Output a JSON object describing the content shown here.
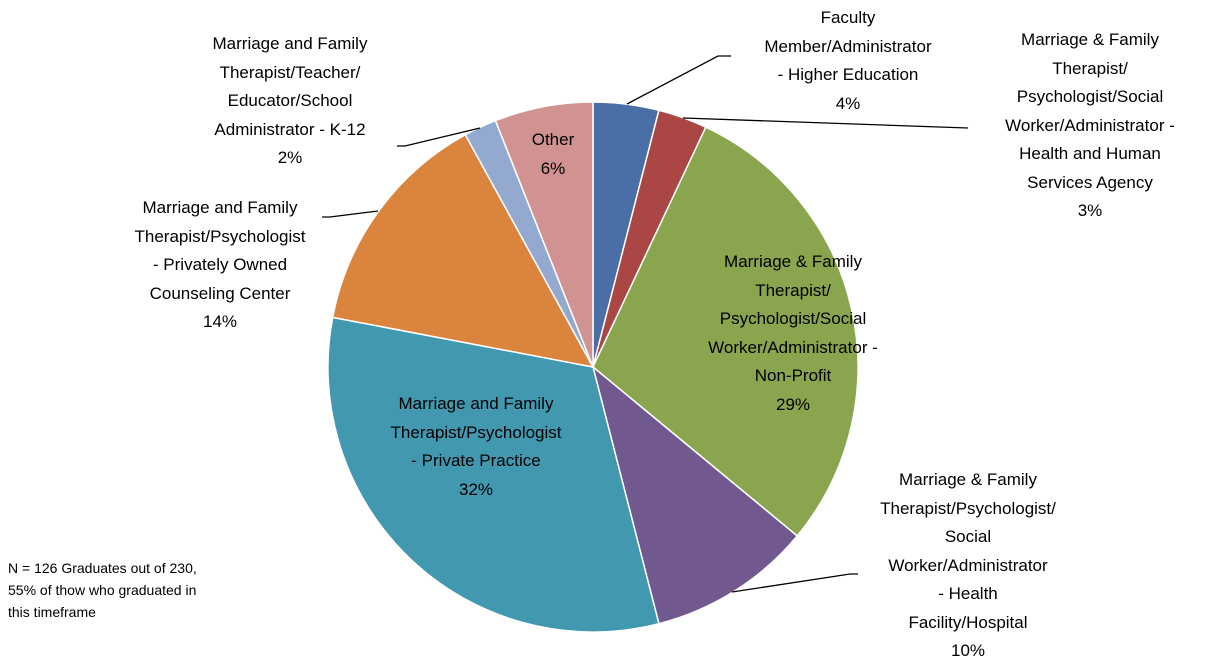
{
  "chart_data": {
    "type": "pie",
    "categories": [
      "Faculty\nMember/Administrator\n- Higher Education",
      "Marriage & Family\nTherapist/\nPsychologist/Social\nWorker/Administrator -\nHealth and Human\nServices Agency",
      "Marriage & Family\nTherapist/\nPsychologist/Social\nWorker/Administrator -\nNon-Profit",
      "Marriage & Family\nTherapist/Psychologist/\nSocial\nWorker/Administrator\n- Health\nFacility/Hospital",
      "Marriage and Family\nTherapist/Psychologist\n- Private Practice",
      "Marriage and Family\nTherapist/Psychologist\n- Privately Owned\nCounseling Center",
      "Marriage and Family\nTherapist/Teacher/\nEducator/School\nAdministrator - K-12",
      "Other"
    ],
    "values": [
      4,
      3,
      29,
      10,
      32,
      14,
      2,
      6
    ],
    "value_labels": [
      "4%",
      "3%",
      "29%",
      "10%",
      "32%",
      "14%",
      "2%",
      "6%"
    ],
    "colors": [
      "#4a6ea6",
      "#aa4643",
      "#89a54e",
      "#71588f",
      "#4198af",
      "#db843d",
      "#93a9cf",
      "#d19392"
    ],
    "annotation": "N = 126 Graduates out of 230,\n55% of thow who graduated in\nthis timeframe"
  }
}
